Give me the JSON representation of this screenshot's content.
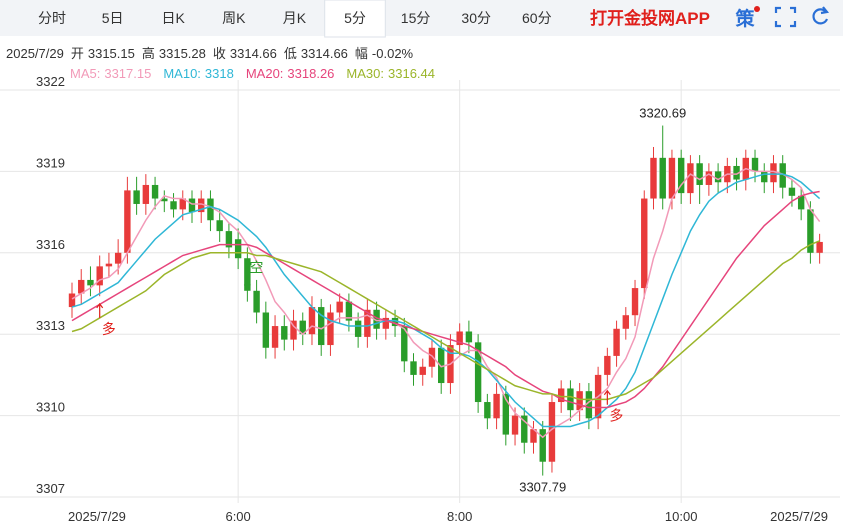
{
  "header": {
    "tabs": [
      "分时",
      "5日",
      "日K",
      "周K",
      "月K",
      "5分",
      "15分",
      "30分",
      "60分"
    ],
    "active_tab": 5,
    "brand": "打开金投网APP",
    "icon_label": "策"
  },
  "quote": {
    "date": "2025/7/29",
    "fields": [
      {
        "label": "开",
        "value": "3315.15"
      },
      {
        "label": "高",
        "value": "3315.28"
      },
      {
        "label": "收",
        "value": "3314.66"
      },
      {
        "label": "低",
        "value": "3314.66"
      },
      {
        "label": "幅",
        "value": "-0.02%"
      }
    ]
  },
  "chart_data": {
    "type": "candlestick",
    "categories": [
      "2025/7/29",
      null,
      null,
      null,
      null,
      null,
      null,
      null,
      null,
      null,
      null,
      null,
      null,
      null,
      null,
      null,
      null,
      null,
      "6:00",
      null,
      null,
      null,
      null,
      null,
      null,
      null,
      null,
      null,
      null,
      null,
      null,
      null,
      null,
      null,
      null,
      null,
      null,
      null,
      null,
      null,
      null,
      null,
      "8:00",
      null,
      null,
      null,
      null,
      null,
      null,
      null,
      null,
      null,
      null,
      null,
      null,
      null,
      null,
      null,
      null,
      null,
      null,
      null,
      null,
      null,
      null,
      null,
      "10:00",
      null,
      null,
      null,
      null,
      null,
      null,
      null,
      null,
      null,
      null,
      null,
      null,
      null,
      null,
      "2025/7/29"
    ],
    "open": [
      3314.0,
      3314.5,
      3315.0,
      3314.8,
      3315.5,
      3315.6,
      3316.0,
      3318.3,
      3317.8,
      3318.5,
      3318.0,
      3317.9,
      3317.6,
      3318.0,
      3317.5,
      3318.0,
      3317.2,
      3316.8,
      3316.5,
      3315.8,
      3314.6,
      3313.8,
      3312.5,
      3313.3,
      3312.8,
      3313.5,
      3313.0,
      3314.0,
      3312.6,
      3313.8,
      3314.2,
      3313.5,
      3312.9,
      3313.9,
      3313.2,
      3313.6,
      3313.3,
      3312.0,
      3311.5,
      3311.8,
      3312.5,
      3311.2,
      3312.6,
      3313.1,
      3312.7,
      3310.5,
      3309.9,
      3310.8,
      3309.3,
      3310.0,
      3309.0,
      3309.5,
      3308.3,
      3310.5,
      3311.0,
      3310.2,
      3310.9,
      3309.9,
      3311.5,
      3312.2,
      3313.2,
      3313.7,
      3314.7,
      3318.0,
      3319.5,
      3318.0,
      3319.5,
      3318.2,
      3319.3,
      3318.5,
      3319.0,
      3318.6,
      3319.2,
      3318.7,
      3319.5,
      3319.0,
      3318.6,
      3319.3,
      3318.4,
      3318.1,
      3317.6,
      3316.0
    ],
    "high": [
      3314.9,
      3315.4,
      3315.5,
      3315.9,
      3316.0,
      3316.5,
      3318.8,
      3318.8,
      3318.9,
      3318.8,
      3318.3,
      3318.2,
      3318.3,
      3318.3,
      3318.3,
      3318.3,
      3317.6,
      3317.1,
      3316.9,
      3316.2,
      3315.0,
      3314.2,
      3313.7,
      3313.7,
      3313.9,
      3313.8,
      3314.4,
      3314.3,
      3314.1,
      3314.5,
      3314.5,
      3313.8,
      3314.3,
      3314.2,
      3313.9,
      3313.9,
      3313.6,
      3312.3,
      3312.1,
      3312.8,
      3312.8,
      3313.0,
      3313.4,
      3313.5,
      3313.0,
      3310.8,
      3311.2,
      3311.1,
      3310.3,
      3310.3,
      3309.8,
      3309.8,
      3310.8,
      3311.3,
      3311.3,
      3311.2,
      3311.2,
      3311.8,
      3312.5,
      3313.5,
      3314.0,
      3315.0,
      3318.3,
      3319.9,
      3320.69,
      3319.8,
      3319.8,
      3319.6,
      3319.6,
      3319.3,
      3319.3,
      3319.5,
      3319.5,
      3319.8,
      3319.8,
      3319.3,
      3319.6,
      3319.6,
      3318.7,
      3318.4,
      3317.9,
      3316.7
    ],
    "low": [
      3313.6,
      3314.1,
      3314.4,
      3314.4,
      3315.1,
      3315.2,
      3315.6,
      3317.4,
      3317.4,
      3317.6,
      3317.5,
      3317.3,
      3317.2,
      3317.1,
      3317.1,
      3316.8,
      3316.4,
      3315.8,
      3315.4,
      3314.2,
      3313.4,
      3312.1,
      3312.1,
      3312.4,
      3312.4,
      3312.6,
      3312.6,
      3312.2,
      3312.2,
      3313.4,
      3313.1,
      3312.5,
      3312.5,
      3312.8,
      3312.8,
      3312.9,
      3311.6,
      3311.1,
      3311.1,
      3311.4,
      3310.8,
      3310.8,
      3312.2,
      3312.3,
      3310.1,
      3309.5,
      3309.5,
      3308.9,
      3308.9,
      3308.6,
      3308.6,
      3307.79,
      3307.9,
      3310.1,
      3309.8,
      3309.8,
      3309.5,
      3309.5,
      3311.1,
      3311.8,
      3312.8,
      3313.3,
      3314.3,
      3317.6,
      3317.6,
      3317.6,
      3317.8,
      3317.8,
      3317.8,
      3318.1,
      3318.2,
      3318.2,
      3318.3,
      3318.3,
      3318.6,
      3318.2,
      3318.2,
      3318.0,
      3317.7,
      3317.2,
      3315.6,
      3315.6
    ],
    "close": [
      3314.5,
      3315.0,
      3314.8,
      3315.5,
      3315.6,
      3316.0,
      3318.3,
      3317.8,
      3318.5,
      3318.0,
      3317.9,
      3317.6,
      3318.0,
      3317.5,
      3318.0,
      3317.2,
      3316.8,
      3316.2,
      3315.8,
      3314.6,
      3313.8,
      3312.5,
      3313.3,
      3312.8,
      3313.5,
      3313.0,
      3314.0,
      3312.6,
      3313.8,
      3314.2,
      3313.5,
      3312.9,
      3313.9,
      3313.2,
      3313.6,
      3313.3,
      3312.0,
      3311.5,
      3311.8,
      3312.5,
      3311.2,
      3312.6,
      3313.1,
      3312.7,
      3310.5,
      3309.9,
      3310.8,
      3309.3,
      3310.0,
      3309.0,
      3309.5,
      3308.3,
      3310.5,
      3311.0,
      3310.2,
      3310.9,
      3309.9,
      3311.5,
      3312.2,
      3313.2,
      3313.7,
      3314.7,
      3318.0,
      3319.5,
      3318.0,
      3319.5,
      3318.2,
      3319.3,
      3318.5,
      3319.0,
      3318.6,
      3319.2,
      3318.7,
      3319.5,
      3319.0,
      3318.6,
      3319.3,
      3318.4,
      3318.1,
      3317.6,
      3316.0,
      3316.4
    ],
    "up_color": "#e83b3b",
    "down_color": "#2a9d2a",
    "series": [
      {
        "name": "MA5:",
        "color": "#f29ab8",
        "values": [
          3314.3,
          3314.5,
          3314.7,
          3315.0,
          3315.1,
          3315.4,
          3316.0,
          3316.6,
          3317.2,
          3317.7,
          3318.1,
          3318.0,
          3318.0,
          3317.8,
          3317.8,
          3317.7,
          3317.5,
          3317.1,
          3316.8,
          3316.3,
          3315.7,
          3315.0,
          3314.2,
          3313.8,
          3313.3,
          3313.0,
          3313.3,
          3313.2,
          3313.4,
          3313.6,
          3313.6,
          3313.6,
          3313.7,
          3313.5,
          3313.5,
          3313.4,
          3313.2,
          3312.7,
          3312.4,
          3312.2,
          3311.8,
          3311.9,
          3312.2,
          3312.4,
          3312.4,
          3311.8,
          3311.4,
          3310.6,
          3310.1,
          3309.8,
          3309.5,
          3309.2,
          3309.5,
          3309.7,
          3309.9,
          3310.2,
          3310.5,
          3310.7,
          3311.0,
          3311.6,
          3312.1,
          3312.9,
          3314.4,
          3315.8,
          3316.8,
          3318.0,
          3318.5,
          3318.9,
          3318.7,
          3318.9,
          3318.7,
          3318.9,
          3318.9,
          3319.1,
          3319.0,
          3319.0,
          3319.0,
          3318.9,
          3318.7,
          3318.4,
          3317.6,
          3317.15
        ]
      },
      {
        "name": "MA10:",
        "color": "#2fb7d6",
        "values": [
          3314.0,
          3314.1,
          3314.3,
          3314.5,
          3314.7,
          3314.9,
          3315.3,
          3315.7,
          3316.1,
          3316.5,
          3316.8,
          3317.1,
          3317.4,
          3317.5,
          3317.6,
          3317.7,
          3317.6,
          3317.4,
          3317.2,
          3316.9,
          3316.6,
          3316.2,
          3315.7,
          3315.2,
          3314.8,
          3314.4,
          3314.0,
          3313.7,
          3313.5,
          3313.4,
          3313.3,
          3313.3,
          3313.3,
          3313.4,
          3313.5,
          3313.5,
          3313.4,
          3313.2,
          3313.0,
          3312.8,
          3312.5,
          3312.3,
          3312.3,
          3312.2,
          3312.0,
          3311.7,
          3311.3,
          3310.9,
          3310.5,
          3310.2,
          3309.9,
          3309.6,
          3309.6,
          3309.6,
          3309.6,
          3309.7,
          3309.8,
          3310.0,
          3310.3,
          3310.6,
          3311.0,
          3311.6,
          3312.5,
          3313.4,
          3314.3,
          3315.2,
          3316.0,
          3316.8,
          3317.4,
          3317.9,
          3318.2,
          3318.4,
          3318.6,
          3318.7,
          3318.8,
          3318.9,
          3318.9,
          3318.9,
          3318.8,
          3318.6,
          3318.3,
          3318.0
        ]
      },
      {
        "name": "MA20:",
        "color": "#e6457c",
        "values": [
          3313.5,
          3313.7,
          3313.9,
          3314.1,
          3314.3,
          3314.5,
          3314.7,
          3314.9,
          3315.1,
          3315.3,
          3315.5,
          3315.7,
          3315.9,
          3316.0,
          3316.1,
          3316.2,
          3316.3,
          3316.3,
          3316.3,
          3316.3,
          3316.2,
          3316.0,
          3315.8,
          3315.6,
          3315.4,
          3315.2,
          3315.0,
          3314.8,
          3314.6,
          3314.4,
          3314.2,
          3314.0,
          3313.8,
          3313.6,
          3313.5,
          3313.4,
          3313.3,
          3313.2,
          3313.1,
          3313.0,
          3312.9,
          3312.8,
          3312.7,
          3312.6,
          3312.4,
          3312.2,
          3312.0,
          3311.8,
          3311.5,
          3311.3,
          3311.1,
          3310.9,
          3310.8,
          3310.6,
          3310.5,
          3310.4,
          3310.3,
          3310.3,
          3310.3,
          3310.4,
          3310.5,
          3310.7,
          3311.0,
          3311.4,
          3311.8,
          3312.3,
          3312.8,
          3313.3,
          3313.8,
          3314.3,
          3314.8,
          3315.3,
          3315.8,
          3316.2,
          3316.6,
          3317.0,
          3317.3,
          3317.6,
          3317.9,
          3318.1,
          3318.2,
          3318.26
        ]
      },
      {
        "name": "MA30:",
        "color": "#9bb52a",
        "values": [
          3313.1,
          3313.2,
          3313.4,
          3313.6,
          3313.8,
          3314.0,
          3314.2,
          3314.4,
          3314.6,
          3314.9,
          3315.2,
          3315.4,
          3315.6,
          3315.8,
          3315.9,
          3316.0,
          3316.0,
          3316.0,
          3316.0,
          3316.0,
          3315.9,
          3315.9,
          3315.8,
          3315.7,
          3315.6,
          3315.5,
          3315.4,
          3315.3,
          3315.1,
          3314.9,
          3314.7,
          3314.5,
          3314.3,
          3314.1,
          3313.9,
          3313.7,
          3313.5,
          3313.3,
          3313.1,
          3312.9,
          3312.7,
          3312.5,
          3312.3,
          3312.1,
          3311.9,
          3311.7,
          3311.5,
          3311.3,
          3311.1,
          3311.0,
          3310.9,
          3310.8,
          3310.8,
          3310.7,
          3310.7,
          3310.6,
          3310.6,
          3310.6,
          3310.6,
          3310.7,
          3310.8,
          3311.0,
          3311.2,
          3311.4,
          3311.7,
          3312.0,
          3312.3,
          3312.6,
          3312.9,
          3313.2,
          3313.5,
          3313.8,
          3314.1,
          3314.4,
          3314.7,
          3315.0,
          3315.3,
          3315.6,
          3315.8,
          3316.1,
          3316.3,
          3316.44
        ]
      }
    ],
    "signals": [
      "多",
      "空",
      "多"
    ],
    "ylim": [
      3307,
      3322
    ],
    "yticks": [
      3322,
      3319,
      3316,
      3313,
      3310,
      3307
    ],
    "grid": true
  }
}
